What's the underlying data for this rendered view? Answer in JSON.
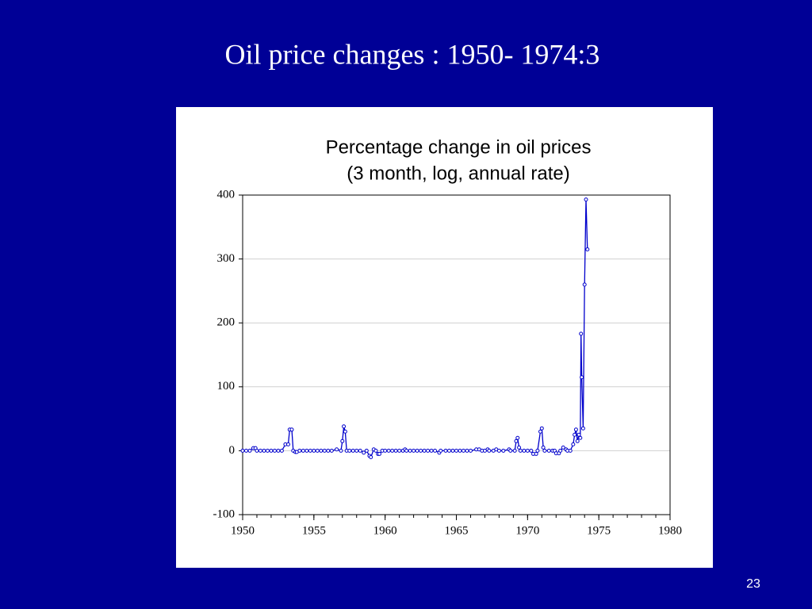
{
  "slide_title": "Oil price changes : 1950- 1974:3",
  "page_number": "23",
  "chart_data": {
    "type": "line",
    "title": "Percentage change in oil prices",
    "subtitle": "(3 month, log, annual rate)",
    "x": [
      1950,
      1950.25,
      1950.5,
      1950.75,
      1950.9,
      1951,
      1951.25,
      1951.5,
      1951.75,
      1952,
      1952.25,
      1952.5,
      1952.75,
      1953,
      1953.2,
      1953.3,
      1953.45,
      1953.55,
      1953.7,
      1953.8,
      1954,
      1954.25,
      1954.5,
      1954.75,
      1955,
      1955.25,
      1955.5,
      1955.75,
      1956,
      1956.25,
      1956.6,
      1956.9,
      1957,
      1957.1,
      1957.2,
      1957.3,
      1957.5,
      1957.75,
      1958,
      1958.25,
      1958.5,
      1958.7,
      1958.9,
      1959,
      1959.2,
      1959.35,
      1959.5,
      1959.6,
      1959.8,
      1960,
      1960.25,
      1960.5,
      1960.75,
      1961,
      1961.25,
      1961.4,
      1961.5,
      1961.75,
      1962,
      1962.25,
      1962.5,
      1962.75,
      1963,
      1963.25,
      1963.5,
      1963.8,
      1963.9,
      1964.25,
      1964.5,
      1964.75,
      1965,
      1965.25,
      1965.5,
      1965.75,
      1966,
      1966.4,
      1966.6,
      1966.8,
      1967,
      1967.2,
      1967.3,
      1967.6,
      1967.8,
      1968,
      1968.3,
      1968.7,
      1968.8,
      1969.1,
      1969.2,
      1969.3,
      1969.4,
      1969.5,
      1969.75,
      1970,
      1970.25,
      1970.4,
      1970.6,
      1970.7,
      1970.9,
      1971,
      1971.1,
      1971.2,
      1971.5,
      1971.75,
      1971.9,
      1972,
      1972.2,
      1972.3,
      1972.5,
      1972.7,
      1972.8,
      1973,
      1973.2,
      1973.3,
      1973.4,
      1973.5,
      1973.6,
      1973.7,
      1973.75,
      1973.8,
      1973.9,
      1974,
      1974.1,
      1974.2
    ],
    "values": [
      0,
      0,
      0,
      4,
      4,
      0,
      0,
      0,
      0,
      0,
      0,
      0,
      0,
      10,
      10,
      33,
      33,
      0,
      -2,
      -2,
      0,
      0,
      0,
      0,
      0,
      0,
      0,
      0,
      0,
      0,
      2,
      0,
      15,
      38,
      30,
      0,
      0,
      0,
      0,
      0,
      -3,
      0,
      -8,
      -10,
      2,
      0,
      -5,
      -5,
      0,
      0,
      0,
      0,
      0,
      0,
      0,
      2,
      0,
      0,
      0,
      0,
      0,
      0,
      0,
      0,
      0,
      -3,
      0,
      0,
      0,
      0,
      0,
      0,
      0,
      0,
      0,
      2,
      2,
      0,
      0,
      2,
      0,
      0,
      2,
      0,
      0,
      2,
      0,
      0,
      15,
      20,
      5,
      0,
      0,
      0,
      0,
      -5,
      -5,
      0,
      30,
      35,
      5,
      0,
      0,
      0,
      0,
      -4,
      -4,
      0,
      5,
      2,
      0,
      0,
      10,
      25,
      33,
      15,
      25,
      20,
      183,
      115,
      35,
      260,
      393,
      315
    ],
    "color": "#0000cc",
    "xlim": [
      1950,
      1980
    ],
    "xticks": [
      1950,
      1955,
      1960,
      1965,
      1970,
      1975,
      1980
    ],
    "ylim": [
      -100,
      400
    ],
    "yticks": [
      -100,
      0,
      100,
      200,
      300,
      400
    ],
    "grid": true
  }
}
